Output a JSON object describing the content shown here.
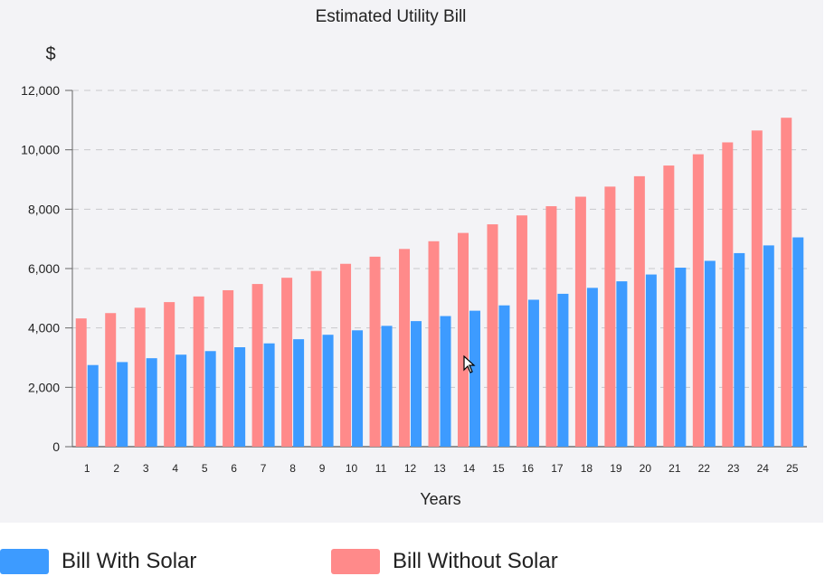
{
  "chart_data": {
    "type": "bar",
    "title": "Estimated Utility Bill",
    "ylabel": "$",
    "xlabel": "Years",
    "categories": [
      "1",
      "2",
      "3",
      "4",
      "5",
      "6",
      "7",
      "8",
      "9",
      "10",
      "11",
      "12",
      "13",
      "14",
      "15",
      "16",
      "17",
      "18",
      "19",
      "20",
      "21",
      "22",
      "23",
      "24",
      "25"
    ],
    "yticks": [
      "0",
      "2,000",
      "4,000",
      "6,000",
      "8,000",
      "10,000",
      "12,000"
    ],
    "ylim": [
      0,
      12000
    ],
    "grid": true,
    "series": [
      {
        "name": "Bill Without Solar",
        "color": "#ff8a8a",
        "values": [
          4320,
          4500,
          4680,
          4870,
          5060,
          5270,
          5480,
          5690,
          5920,
          6160,
          6400,
          6660,
          6920,
          7200,
          7490,
          7790,
          8100,
          8420,
          8760,
          9110,
          9470,
          9850,
          10250,
          10650,
          11080
        ]
      },
      {
        "name": "Bill With Solar",
        "color": "#3d9bff",
        "values": [
          2750,
          2850,
          2980,
          3100,
          3220,
          3350,
          3480,
          3620,
          3770,
          3920,
          4070,
          4230,
          4400,
          4580,
          4760,
          4950,
          5150,
          5350,
          5570,
          5800,
          6030,
          6260,
          6520,
          6780,
          7050
        ]
      }
    ]
  },
  "legend": {
    "with_solar": {
      "label": "Bill With Solar",
      "color": "#3d9bff"
    },
    "without_solar": {
      "label": "Bill Without Solar",
      "color": "#ff8a8a"
    }
  }
}
